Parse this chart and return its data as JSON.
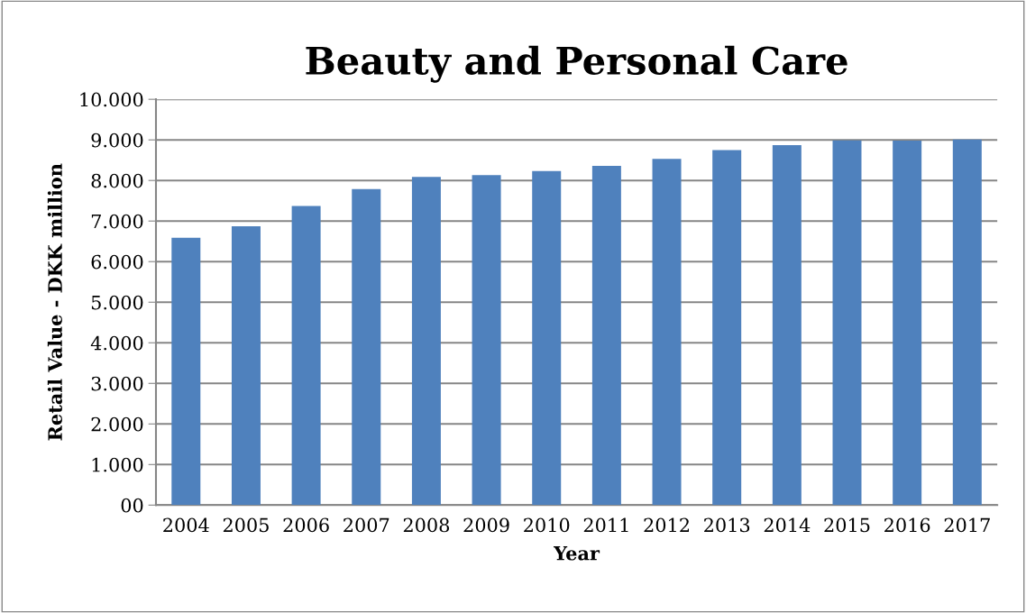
{
  "chart_data": {
    "type": "bar",
    "title": "Beauty and Personal Care",
    "xlabel": "Year",
    "ylabel": "Retail Value - DKK million",
    "categories": [
      "2004",
      "2005",
      "2006",
      "2007",
      "2008",
      "2009",
      "2010",
      "2011",
      "2012",
      "2013",
      "2014",
      "2015",
      "2016",
      "2017"
    ],
    "values": [
      6590,
      6870,
      7370,
      7790,
      8090,
      8130,
      8230,
      8360,
      8530,
      8750,
      8870,
      8990,
      8980,
      9010
    ],
    "color": "#4f81bd",
    "ylim": [
      0,
      10000
    ],
    "yticks": [
      {
        "value": 0,
        "label": "00"
      },
      {
        "value": 1000,
        "label": "1.000"
      },
      {
        "value": 2000,
        "label": "2.000"
      },
      {
        "value": 3000,
        "label": "3.000"
      },
      {
        "value": 4000,
        "label": "4.000"
      },
      {
        "value": 5000,
        "label": "5.000"
      },
      {
        "value": 6000,
        "label": "6.000"
      },
      {
        "value": 7000,
        "label": "7.000"
      },
      {
        "value": 8000,
        "label": "8.000"
      },
      {
        "value": 9000,
        "label": "9.000"
      },
      {
        "value": 10000,
        "label": "10.000"
      }
    ],
    "grid": "y"
  }
}
